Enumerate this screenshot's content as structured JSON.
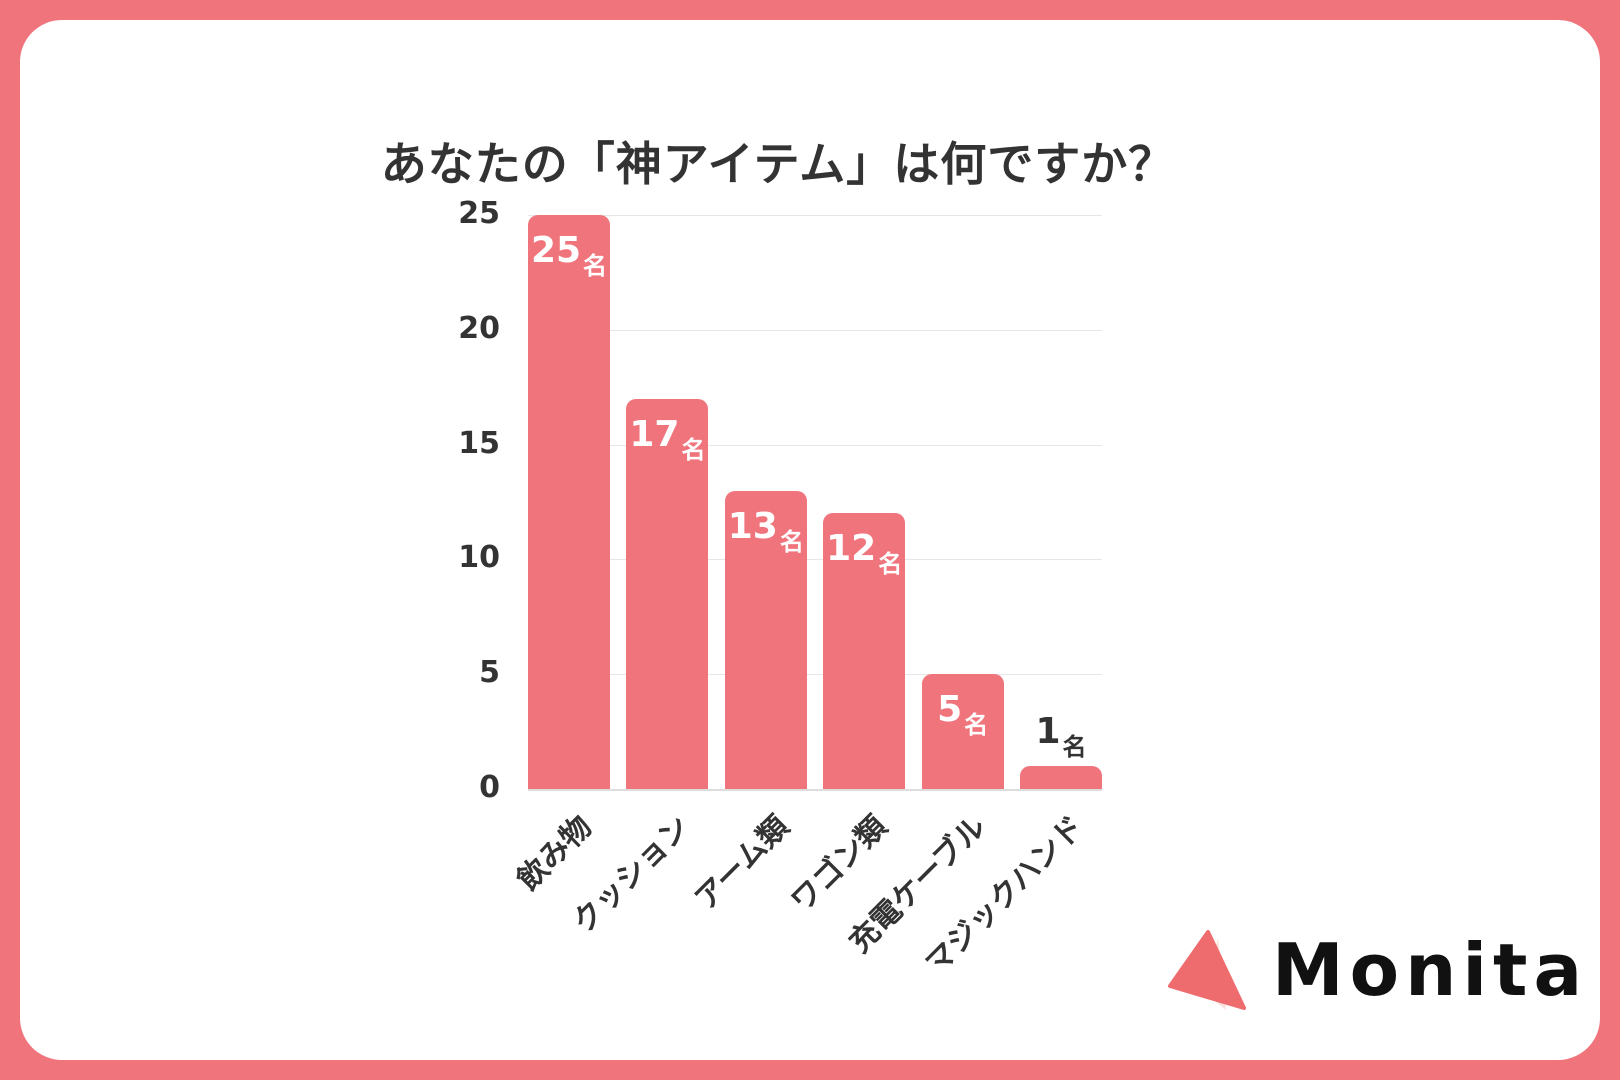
{
  "title": "あなたの「神アイテム」は何ですか？",
  "colors": {
    "frame": "#f0747c",
    "bar": "#f0747c",
    "text": "#333333",
    "grid": "#e6e6e6",
    "logo_primary": "#ee6b6e",
    "logo_secondary": "#fbe0dc"
  },
  "chart_data": {
    "type": "bar",
    "title": "あなたの「神アイテム」は何ですか？",
    "xlabel": "",
    "ylabel": "",
    "categories": [
      "飲み物",
      "クッション",
      "アーム類",
      "ワゴン類",
      "充電ケーブル",
      "マジックハンド"
    ],
    "values": [
      25,
      17,
      13,
      12,
      5,
      1
    ],
    "unit": "名",
    "ylim": [
      0,
      25
    ],
    "yticks": [
      0,
      5,
      10,
      15,
      20,
      25
    ],
    "grid": true,
    "legend": null,
    "data_labels": [
      "25名",
      "17名",
      "13名",
      "12名",
      "5名",
      "1名"
    ]
  },
  "axis": {
    "yticks": [
      "0",
      "5",
      "10",
      "15",
      "20",
      "25"
    ]
  },
  "bars": [
    {
      "category": "飲み物",
      "value": "25",
      "unit": "名"
    },
    {
      "category": "クッション",
      "value": "17",
      "unit": "名"
    },
    {
      "category": "アーム類",
      "value": "13",
      "unit": "名"
    },
    {
      "category": "ワゴン類",
      "value": "12",
      "unit": "名"
    },
    {
      "category": "充電ケーブル",
      "value": "5",
      "unit": "名"
    },
    {
      "category": "マジックハンド",
      "value": "1",
      "unit": "名"
    }
  ],
  "logo": {
    "text": "Monita",
    "icon": "triangle-logo-icon"
  }
}
